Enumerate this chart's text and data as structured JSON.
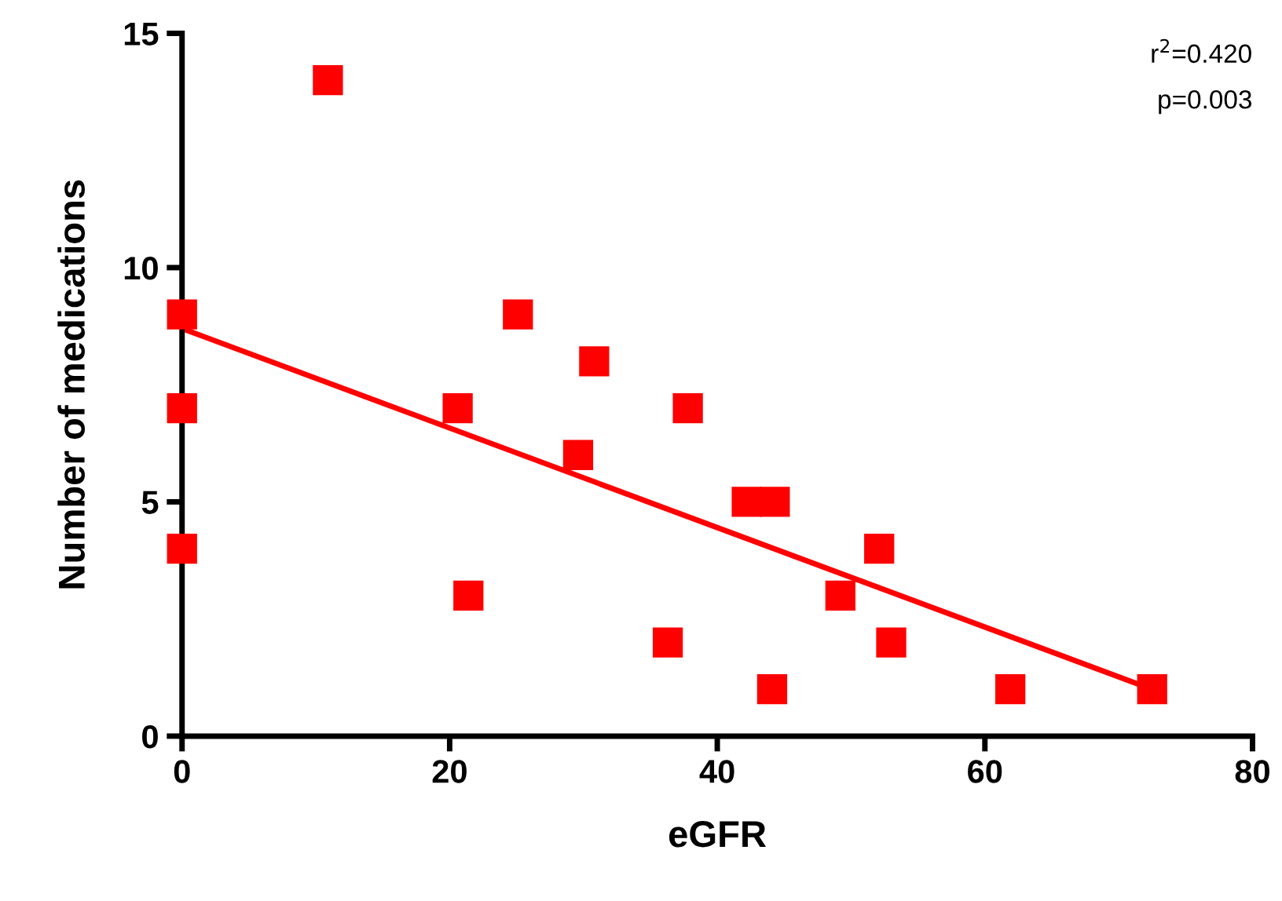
{
  "chart_data": {
    "type": "scatter",
    "xlabel": "eGFR",
    "ylabel": "Number of medications",
    "annotations": [
      "r$^{2}$=0.420",
      "p=0.003"
    ],
    "series": [
      {
        "color": "#ff0000",
        "marker": "square",
        "x": [
          0,
          0,
          0,
          10.9,
          20.6,
          21.4,
          25.1,
          29.6,
          30.8,
          36.3,
          37.8,
          42.2,
          44.1,
          44.3,
          49.2,
          52.1,
          53.0,
          61.9,
          72.5
        ],
        "values": [
          9,
          7,
          4,
          14,
          7,
          3,
          9,
          6,
          8,
          2,
          7,
          5,
          1,
          5,
          3,
          4,
          2,
          1,
          1
        ]
      },
      {
        "type": "line",
        "color": "#ff0000",
        "x": [
          0,
          72.5
        ],
        "values": [
          8.7,
          1.0
        ]
      }
    ],
    "xlim": [
      0,
      80
    ],
    "xticks": [
      0,
      20,
      40,
      60,
      80
    ],
    "ylim": [
      0,
      15
    ],
    "yticks": [
      0,
      5,
      10,
      15
    ],
    "grid": false,
    "legend": false
  }
}
